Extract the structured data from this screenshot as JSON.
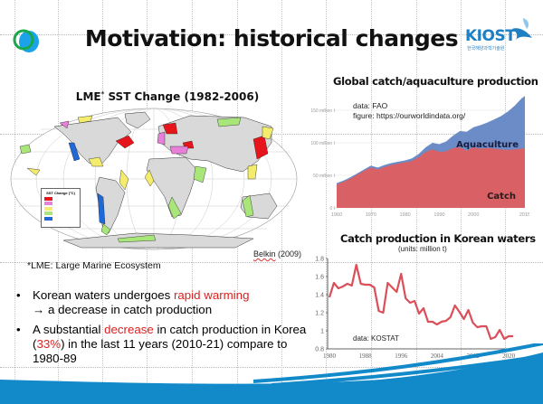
{
  "slide": {
    "title": "Motivation: historical changes",
    "logo_text": "KIOST",
    "logo_subtext": "한국해양과학기술원"
  },
  "map_panel": {
    "title": "LME",
    "title_sup": "*",
    "title_rest": " SST Change (1982-2006)",
    "legend_title": "SST Change (°C)",
    "legend_colors": [
      "#e8141c",
      "#e87fd8",
      "#f4ec6c",
      "#a8e67a",
      "#1e68d8"
    ],
    "citation_name": "Belkin",
    "citation_year": " (2009)",
    "footnote": "*LME: Large Marine Ecosystem"
  },
  "bullets": [
    {
      "parts": [
        {
          "text": "Korean waters undergoes ",
          "red": false
        },
        {
          "text": "rapid warming",
          "red": true
        }
      ],
      "line2": "→ a decrease in catch production"
    },
    {
      "pre": "A substantial ",
      "red1": "decrease",
      "mid": " in catch production in Korea",
      "open": "(",
      "red2": "33%",
      "rest": ") in the last 11 years (2010-21) compare to",
      "line3": "1980-89"
    }
  ],
  "colors": {
    "catch": "#d96065",
    "aquaculture": "#6b8cc7",
    "korea_line": "#d9505a",
    "wave": "#1289c9",
    "accent_red": "#e02020"
  },
  "chart_data": [
    {
      "type": "area",
      "title": "Global catch/aquaculture production",
      "source_line1": "data: FAO",
      "source_line2": "figure: https://ourworldindata.org/",
      "x": [
        1960,
        1962,
        1964,
        1966,
        1968,
        1970,
        1972,
        1974,
        1976,
        1978,
        1980,
        1982,
        1984,
        1986,
        1988,
        1990,
        1992,
        1994,
        1996,
        1998,
        2000,
        2002,
        2004,
        2006,
        2008,
        2010,
        2012,
        2014,
        2015
      ],
      "series": [
        {
          "name": "Catch",
          "values": [
            36,
            40,
            45,
            51,
            57,
            62,
            59,
            63,
            66,
            68,
            70,
            72,
            78,
            86,
            90,
            86,
            87,
            92,
            93,
            88,
            93,
            91,
            92,
            91,
            90,
            89,
            90,
            91,
            92
          ]
        },
        {
          "name": "Aquaculture",
          "values": [
            38,
            42,
            47,
            53,
            59,
            65,
            62,
            66,
            69,
            71,
            73,
            76,
            83,
            93,
            100,
            98,
            102,
            111,
            118,
            117,
            124,
            127,
            131,
            136,
            141,
            148,
            157,
            168,
            172
          ]
        }
      ],
      "yticks": [
        "0 t",
        "50 million t",
        "100 million t",
        "150 million t"
      ],
      "ytick_values": [
        0,
        50,
        100,
        150
      ],
      "xticks": [
        "1960",
        "1970",
        "1980",
        "1990",
        "2000",
        "2015"
      ],
      "xtick_values": [
        1960,
        1970,
        1980,
        1990,
        2000,
        2015
      ],
      "ylim": [
        0,
        175
      ],
      "labels": {
        "aquaculture": "Aquaculture",
        "catch": "Catch"
      }
    },
    {
      "type": "line",
      "title": "Catch production in Korean waters",
      "units": "(units: million t)",
      "source": "data: KOSTAT",
      "x": [
        1980,
        1981,
        1982,
        1983,
        1984,
        1985,
        1986,
        1987,
        1988,
        1989,
        1990,
        1991,
        1992,
        1993,
        1994,
        1995,
        1996,
        1997,
        1998,
        1999,
        2000,
        2001,
        2002,
        2003,
        2004,
        2005,
        2006,
        2007,
        2008,
        2009,
        2010,
        2011,
        2012,
        2013,
        2014,
        2015,
        2016,
        2017,
        2018,
        2019,
        2020,
        2021
      ],
      "values": [
        1.37,
        1.53,
        1.47,
        1.49,
        1.52,
        1.5,
        1.73,
        1.52,
        1.51,
        1.51,
        1.48,
        1.22,
        1.2,
        1.53,
        1.48,
        1.43,
        1.63,
        1.36,
        1.31,
        1.33,
        1.19,
        1.25,
        1.1,
        1.1,
        1.07,
        1.1,
        1.11,
        1.15,
        1.28,
        1.21,
        1.13,
        1.23,
        1.09,
        1.04,
        1.05,
        1.05,
        0.91,
        0.93,
        1.01,
        0.91,
        0.94,
        0.94
      ],
      "yticks": [
        "0.8",
        "1",
        "1.2",
        "1.4",
        "1.6",
        "1.8"
      ],
      "ytick_values": [
        0.8,
        1.0,
        1.2,
        1.4,
        1.6,
        1.8
      ],
      "xticks": [
        "1980",
        "1988",
        "1996",
        "2004",
        "2012",
        "2020"
      ],
      "xtick_values": [
        1980,
        1988,
        1996,
        2004,
        2012,
        2020
      ],
      "ylim": [
        0.8,
        1.8
      ]
    }
  ]
}
